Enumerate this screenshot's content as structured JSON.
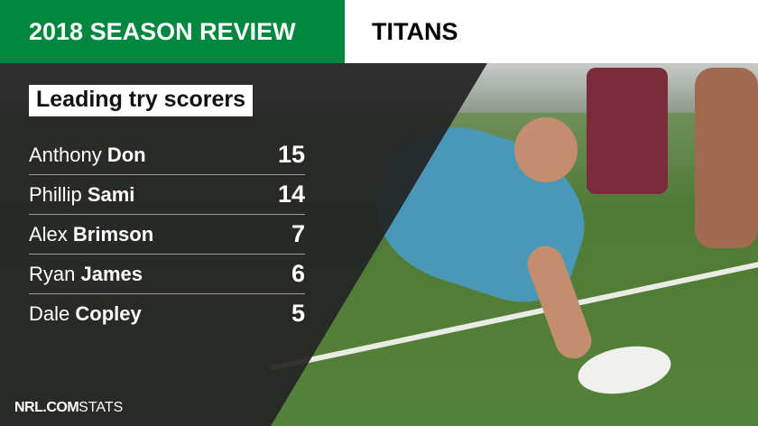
{
  "header": {
    "title": "2018 SEASON REVIEW",
    "team": "TITANS"
  },
  "colors": {
    "brand_green": "#00873f"
  },
  "subtitle": "Leading try scorers",
  "scorers": [
    {
      "first": "Anthony",
      "last": "Don",
      "tries": "15"
    },
    {
      "first": "Phillip",
      "last": "Sami",
      "tries": "14"
    },
    {
      "first": "Alex",
      "last": "Brimson",
      "tries": "7"
    },
    {
      "first": "Ryan",
      "last": "James",
      "tries": "6"
    },
    {
      "first": "Dale",
      "last": "Copley",
      "tries": "5"
    }
  ],
  "footer": {
    "brand": "NRL.COM",
    "label": "STATS"
  }
}
